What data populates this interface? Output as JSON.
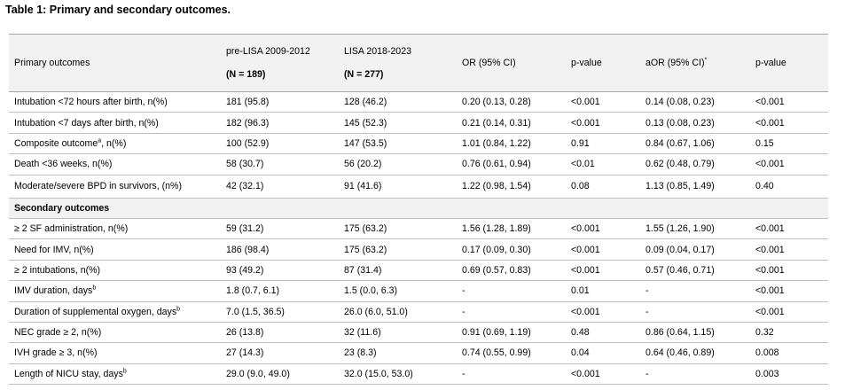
{
  "caption": "Table 1: Primary and secondary outcomes.",
  "headers": {
    "col1": "Primary outcomes",
    "col2": "pre-LISA 2009-2012",
    "col2_sub": "(N = 189)",
    "col3": "LISA 2018-2023",
    "col3_sub": "(N = 277)",
    "col4": "OR (95% CI)",
    "col5": "p-value",
    "col6": "aOR (95% CI)",
    "col6_sup": "*",
    "col7": "p-value"
  },
  "rows": [
    {
      "label": "Intubation <72 hours after birth, n(%)",
      "sup": "",
      "pre": "181 (95.8)",
      "lisa": "128 (46.2)",
      "or": "0.20 (0.13, 0.28)",
      "p": "<0.001",
      "aor": "0.14 (0.08, 0.23)",
      "ap": "<0.001"
    },
    {
      "label": "Intubation <7 days after birth, n(%)",
      "sup": "",
      "pre": "182 (96.3)",
      "lisa": "145 (52.3)",
      "or": "0.21 (0.14, 0.31)",
      "p": "<0.001",
      "aor": "0.13 (0.08, 0.23)",
      "ap": "<0.001"
    },
    {
      "label": "Composite outcome",
      "sup": "a",
      "label_tail": ", n(%)",
      "pre": "100 (52.9)",
      "lisa": "147 (53.5)",
      "or": "1.01 (0.84, 1.22)",
      "p": "0.91",
      "aor": "0.84 (0.67, 1.06)",
      "ap": "0.15"
    },
    {
      "label": "Death <36 weeks, n(%)",
      "sup": "",
      "pre": "58 (30.7)",
      "lisa": "56 (20.2)",
      "or": "0.76 (0.61, 0.94)",
      "p": "<0.01",
      "aor": "0.62 (0.48, 0.79)",
      "ap": "<0.001"
    },
    {
      "label": "Moderate/severe BPD in survivors, (n%)",
      "sup": "",
      "pre": "42 (32.1)",
      "lisa": "91 (41.6)",
      "or": "1.22 (0.98, 1.54)",
      "p": "0.08",
      "aor": "1.13 (0.85, 1.49)",
      "ap": "0.40"
    },
    {
      "section": "Secondary outcomes"
    },
    {
      "label": "≥ 2 SF administration, n(%)",
      "sup": "",
      "pre": "59 (31.2)",
      "lisa": "175 (63.2)",
      "or": "1.56 (1.28, 1.89)",
      "p": "<0.001",
      "aor": "1.55 (1.26, 1.90)",
      "ap": "<0.001"
    },
    {
      "label": "Need for IMV, n(%)",
      "sup": "",
      "pre": "186 (98.4)",
      "lisa": "175 (63.2)",
      "or": "0.17 (0.09, 0.30)",
      "p": "<0.001",
      "aor": "0.09 (0.04, 0.17)",
      "ap": "<0.001"
    },
    {
      "label": "≥ 2 intubations, n(%)",
      "sup": "",
      "pre": "93 (49.2)",
      "lisa": "87 (31.4)",
      "or": "0.69 (0.57, 0.83)",
      "p": "<0.001",
      "aor": "0.57 (0.46, 0.71)",
      "ap": "<0.001"
    },
    {
      "label": "IMV duration, days",
      "sup": "b",
      "pre": "1.8 (0.7, 6.1)",
      "lisa": "1.5 (0.0, 6.3)",
      "or": "-",
      "p": "0.01",
      "aor": "-",
      "ap": "<0.001"
    },
    {
      "label": "Duration of supplemental oxygen, days",
      "sup": "b",
      "pre": "7.0 (1.5, 36.5)",
      "lisa": "26.0 (6.0, 51.0)",
      "or": "-",
      "p": "<0.001",
      "aor": "-",
      "ap": "<0.001"
    },
    {
      "label": "NEC grade ≥ 2, n(%)",
      "sup": "",
      "pre": "26 (13.8)",
      "lisa": "32 (11.6)",
      "or": "0.91 (0.69, 1.19)",
      "p": "0.48",
      "aor": "0.86 (0.64, 1.15)",
      "ap": "0.32"
    },
    {
      "label": "IVH grade ≥ 3, n(%)",
      "sup": "",
      "pre": "27 (14.3)",
      "lisa": "23 (8.3)",
      "or": "0.74 (0.55, 0.99)",
      "p": "0.04",
      "aor": "0.64 (0.46, 0.89)",
      "ap": "0.008"
    },
    {
      "label": "Length of NICU stay, days",
      "sup": "b",
      "pre": "29.0 (9.0, 49.0)",
      "lisa": "32.0 (15.0, 53.0)",
      "or": "-",
      "p": "<0.001",
      "aor": "-",
      "ap": "0.003"
    }
  ]
}
